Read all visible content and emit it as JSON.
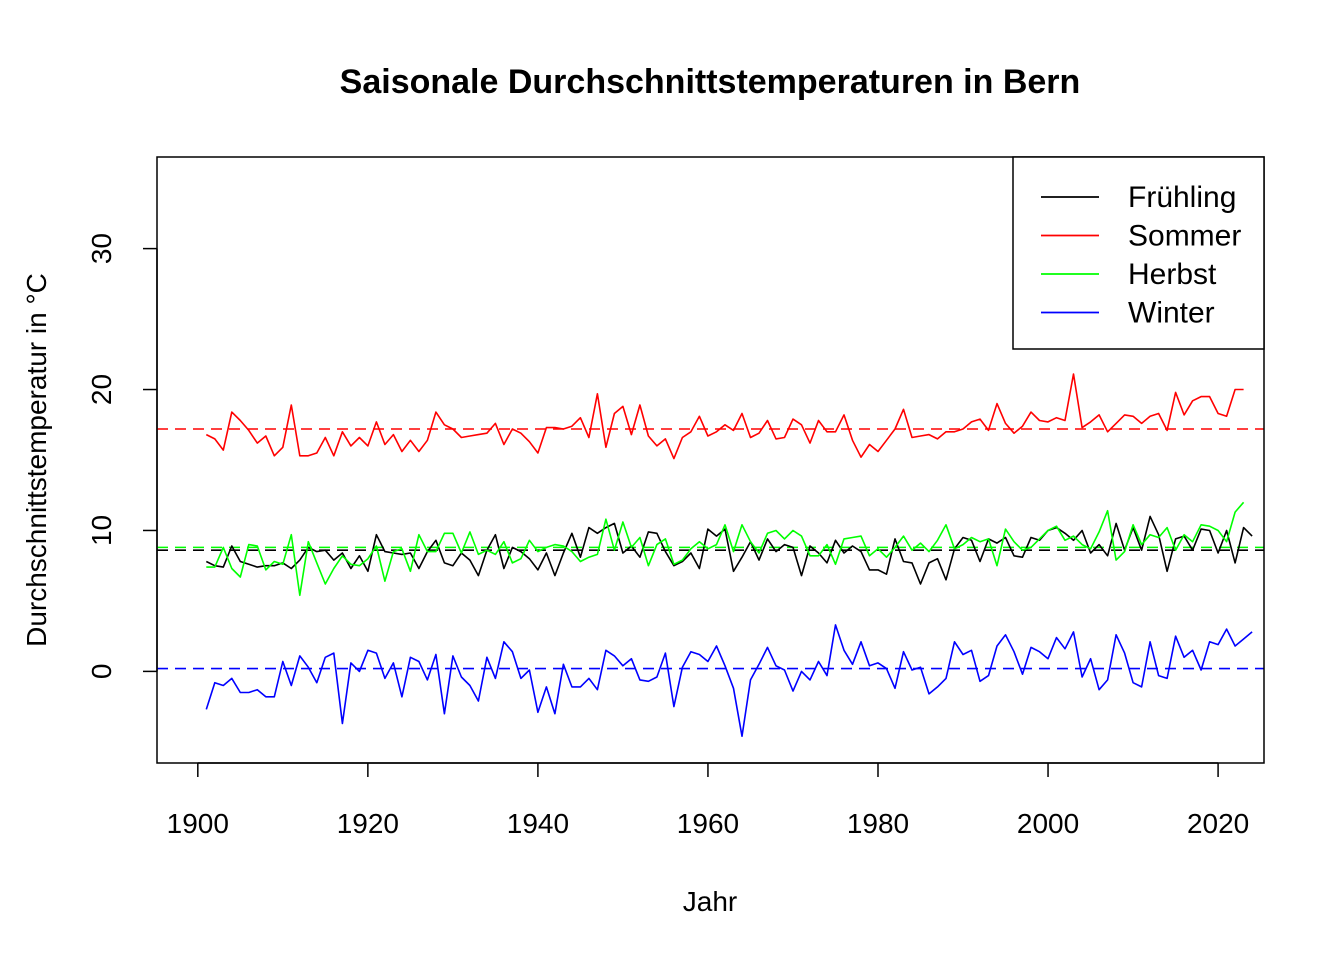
{
  "chart_data": {
    "type": "line",
    "title": "Saisonale Durchschnittstemperaturen in Bern",
    "xlabel": "Jahr",
    "ylabel": "Durchschnittstemperatur in °C",
    "xlim": [
      1895.2,
      2025.4
    ],
    "ylim": [
      -6.5,
      36.5
    ],
    "x_ticks": [
      1900,
      1920,
      1940,
      1960,
      1980,
      2000,
      2020
    ],
    "y_ticks": [
      0,
      10,
      20,
      30
    ],
    "x_start": 1901,
    "grid": false,
    "legend_position": "top-right",
    "series": [
      {
        "name": "Frühling",
        "color": "#000000",
        "mean": 8.6,
        "values": [
          7.8,
          7.5,
          7.4,
          8.9,
          7.8,
          7.6,
          7.4,
          7.5,
          7.5,
          7.7,
          7.3,
          7.9,
          8.8,
          8.5,
          8.6,
          7.9,
          8.4,
          7.3,
          8.2,
          7.1,
          9.7,
          8.5,
          8.4,
          8.3,
          8.4,
          7.3,
          8.5,
          9.3,
          7.7,
          7.5,
          8.4,
          7.9,
          6.8,
          8.6,
          9.7,
          7.3,
          8.8,
          8.5,
          8.0,
          7.2,
          8.4,
          6.8,
          8.4,
          9.8,
          8.1,
          10.2,
          9.8,
          10.2,
          10.5,
          8.4,
          8.9,
          8.1,
          9.9,
          9.8,
          8.5,
          7.5,
          7.8,
          8.4,
          7.3,
          10.1,
          9.6,
          10.1,
          7.1,
          8.1,
          9.2,
          7.9,
          9.4,
          8.5,
          9.0,
          8.8,
          6.8,
          8.9,
          8.4,
          7.7,
          9.3,
          8.4,
          8.9,
          8.5,
          7.2,
          7.2,
          6.9,
          9.4,
          7.8,
          7.7,
          6.2,
          7.7,
          8.0,
          6.5,
          8.7,
          9.5,
          9.3,
          7.8,
          9.4,
          9.1,
          9.5,
          8.2,
          8.1,
          9.5,
          9.3,
          10.0,
          10.2,
          9.8,
          9.3,
          10.0,
          8.4,
          9.0,
          8.2,
          10.5,
          8.6,
          10.2,
          8.6,
          11.0,
          9.7,
          7.1,
          9.4,
          9.6,
          8.6,
          10.1,
          10.0,
          8.4,
          10.0,
          7.7,
          10.2,
          9.6
        ]
      },
      {
        "name": "Sommer",
        "color": "#ff0000",
        "mean": 17.2,
        "values": [
          16.8,
          16.5,
          15.7,
          18.4,
          17.8,
          17.1,
          16.2,
          16.7,
          15.3,
          15.9,
          18.9,
          15.3,
          15.3,
          15.5,
          16.6,
          15.3,
          17.0,
          16.0,
          16.6,
          16.0,
          17.7,
          16.1,
          16.8,
          15.6,
          16.4,
          15.6,
          16.4,
          18.4,
          17.5,
          17.2,
          16.6,
          16.7,
          16.8,
          16.9,
          17.6,
          16.1,
          17.2,
          16.9,
          16.3,
          15.5,
          17.3,
          17.3,
          17.2,
          17.4,
          18.0,
          16.6,
          19.7,
          15.9,
          18.3,
          18.8,
          16.8,
          18.9,
          16.7,
          16.0,
          16.5,
          15.1,
          16.6,
          17.0,
          18.1,
          16.7,
          17.0,
          17.5,
          17.1,
          18.3,
          16.6,
          16.9,
          17.8,
          16.5,
          16.6,
          17.9,
          17.5,
          16.2,
          17.8,
          17.0,
          17.0,
          18.2,
          16.4,
          15.2,
          16.1,
          15.6,
          16.4,
          17.2,
          18.6,
          16.6,
          16.7,
          16.8,
          16.5,
          17.0,
          17.0,
          17.2,
          17.7,
          17.9,
          17.1,
          19.0,
          17.6,
          16.9,
          17.4,
          18.4,
          17.8,
          17.7,
          18.0,
          17.8,
          21.1,
          17.3,
          17.7,
          18.2,
          17.0,
          17.6,
          18.2,
          18.1,
          17.6,
          18.1,
          18.3,
          17.1,
          19.8,
          18.2,
          19.2,
          19.5,
          19.5,
          18.3,
          18.1,
          20.0,
          20.0
        ]
      },
      {
        "name": "Herbst",
        "color": "#00ff00",
        "mean": 8.8,
        "values": [
          7.4,
          7.4,
          8.8,
          7.3,
          6.7,
          9.0,
          8.9,
          7.2,
          7.8,
          7.6,
          9.7,
          5.4,
          9.2,
          7.7,
          6.2,
          7.3,
          8.2,
          7.6,
          7.5,
          8.0,
          8.9,
          6.4,
          8.5,
          8.7,
          7.1,
          9.7,
          8.5,
          8.5,
          9.8,
          9.8,
          8.4,
          9.9,
          8.3,
          8.6,
          8.3,
          9.2,
          7.7,
          8.0,
          9.3,
          8.5,
          8.8,
          9.0,
          8.9,
          8.5,
          7.8,
          8.1,
          8.3,
          10.8,
          8.6,
          10.6,
          8.8,
          9.5,
          7.5,
          9.0,
          9.4,
          7.6,
          7.9,
          8.7,
          9.2,
          8.7,
          9.0,
          10.4,
          8.5,
          10.4,
          9.2,
          8.4,
          9.8,
          10.0,
          9.4,
          10.0,
          9.6,
          8.2,
          8.2,
          9.0,
          7.6,
          9.4,
          9.5,
          9.6,
          8.2,
          8.7,
          8.1,
          8.8,
          9.6,
          8.6,
          9.1,
          8.5,
          9.3,
          10.4,
          8.7,
          9.0,
          9.5,
          9.2,
          9.4,
          7.5,
          10.1,
          9.2,
          8.6,
          8.8,
          9.4,
          10.0,
          10.3,
          9.3,
          9.6,
          9.0,
          8.7,
          9.9,
          11.4,
          7.9,
          8.5,
          10.4,
          9.0,
          9.7,
          9.5,
          10.2,
          8.6,
          9.7,
          9.2,
          10.4,
          10.3,
          10.0,
          9.2,
          11.3,
          12.0
        ]
      },
      {
        "name": "Winter",
        "color": "#0000ff",
        "mean": 0.2,
        "values": [
          -2.7,
          -0.8,
          -1.0,
          -0.5,
          -1.5,
          -1.5,
          -1.3,
          -1.8,
          -1.8,
          0.7,
          -1.0,
          1.1,
          0.3,
          -0.8,
          1.0,
          1.3,
          -3.7,
          0.6,
          0.0,
          1.5,
          1.3,
          -0.5,
          0.6,
          -1.8,
          1.0,
          0.7,
          -0.6,
          1.2,
          -3.0,
          1.1,
          -0.4,
          -1.0,
          -2.1,
          1.0,
          -0.5,
          2.1,
          1.4,
          -0.5,
          0.1,
          -2.9,
          -1.1,
          -3.0,
          0.5,
          -1.1,
          -1.1,
          -0.5,
          -1.3,
          1.5,
          1.1,
          0.4,
          0.9,
          -0.6,
          -0.7,
          -0.4,
          1.3,
          -2.5,
          0.3,
          1.4,
          1.2,
          0.7,
          1.8,
          0.4,
          -1.2,
          -4.6,
          -0.6,
          0.5,
          1.7,
          0.4,
          0.1,
          -1.4,
          0.0,
          -0.6,
          0.7,
          -0.3,
          3.3,
          1.5,
          0.5,
          2.1,
          0.4,
          0.6,
          0.2,
          -1.2,
          1.4,
          0.1,
          0.3,
          -1.6,
          -1.1,
          -0.5,
          2.1,
          1.2,
          1.5,
          -0.7,
          -0.3,
          1.8,
          2.6,
          1.4,
          -0.2,
          1.7,
          1.4,
          0.9,
          2.4,
          1.6,
          2.8,
          -0.4,
          0.9,
          -1.3,
          -0.6,
          2.6,
          1.3,
          -0.8,
          -1.1,
          2.1,
          -0.3,
          -0.5,
          2.5,
          1.0,
          1.5,
          0.1,
          2.1,
          1.9,
          3.0,
          1.8,
          2.3,
          2.8
        ]
      }
    ]
  }
}
